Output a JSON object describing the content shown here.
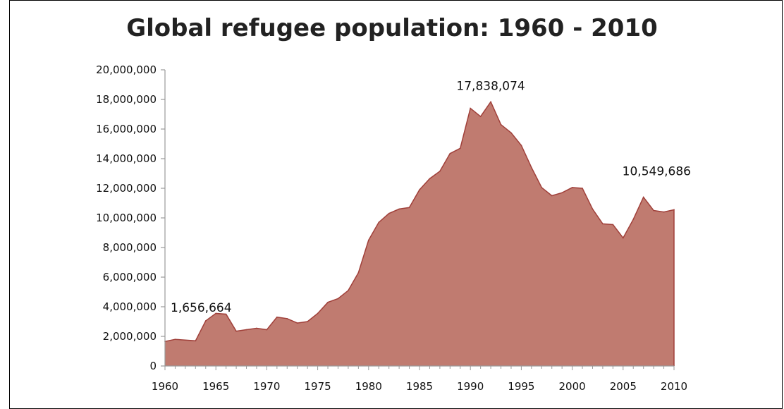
{
  "chart_data": {
    "type": "area",
    "title": "Global refugee population: 1960 - 2010",
    "xlabel": "",
    "ylabel": "",
    "xlim": [
      1960,
      2010
    ],
    "ylim": [
      0,
      20000000
    ],
    "y_ticks": [
      "0",
      "2,000,000",
      "4,000,000",
      "6,000,000",
      "8,000,000",
      "10,000,000",
      "12,000,000",
      "14,000,000",
      "16,000,000",
      "18,000,000",
      "20,000,000"
    ],
    "x_ticks": [
      "1960",
      "1965",
      "1970",
      "1975",
      "1980",
      "1985",
      "1990",
      "1995",
      "2000",
      "2005",
      "2010"
    ],
    "grid": false,
    "legend": "none",
    "fill_color": "#c07b70",
    "line_color": "#a0403a",
    "x": [
      1960,
      1961,
      1962,
      1963,
      1964,
      1965,
      1966,
      1967,
      1968,
      1969,
      1970,
      1971,
      1972,
      1973,
      1974,
      1975,
      1976,
      1977,
      1978,
      1979,
      1980,
      1981,
      1982,
      1983,
      1984,
      1985,
      1986,
      1987,
      1988,
      1989,
      1990,
      1991,
      1992,
      1993,
      1994,
      1995,
      1996,
      1997,
      1998,
      1999,
      2000,
      2001,
      2002,
      2003,
      2004,
      2005,
      2006,
      2007,
      2008,
      2009,
      2010
    ],
    "values": [
      1656664,
      1800000,
      1750000,
      1700000,
      3050000,
      3550000,
      3500000,
      2350000,
      2450000,
      2550000,
      2450000,
      3300000,
      3200000,
      2900000,
      3000000,
      3550000,
      4300000,
      4550000,
      5100000,
      6300000,
      8500000,
      9700000,
      10300000,
      10600000,
      10700000,
      11900000,
      12650000,
      13150000,
      14350000,
      14700000,
      17400000,
      16850000,
      17838074,
      16300000,
      15750000,
      14900000,
      13400000,
      12050000,
      11500000,
      11700000,
      12050000,
      12000000,
      10600000,
      9600000,
      9550000,
      8650000,
      9900000,
      11400000,
      10500000,
      10400000,
      10549686
    ],
    "annotations": [
      {
        "x": 1960,
        "label": "1,656,664"
      },
      {
        "x": 1992,
        "label": "17,838,074"
      },
      {
        "x": 2010,
        "label": "10,549,686"
      }
    ]
  }
}
